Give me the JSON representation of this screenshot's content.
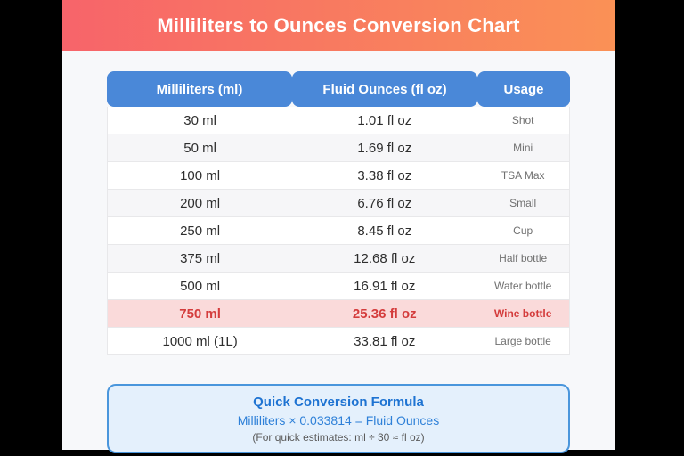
{
  "title": "Milliliters to Ounces Conversion Chart",
  "chart_data": {
    "type": "table",
    "title": "Milliliters to Ounces Conversion Chart",
    "columns": [
      "Milliliters (ml)",
      "Fluid Ounces (fl oz)",
      "Usage"
    ],
    "rows": [
      {
        "ml": "30 ml",
        "fl_oz": "1.01 fl oz",
        "usage": "Shot",
        "highlight": false
      },
      {
        "ml": "50 ml",
        "fl_oz": "1.69 fl oz",
        "usage": "Mini",
        "highlight": false
      },
      {
        "ml": "100 ml",
        "fl_oz": "3.38 fl oz",
        "usage": "TSA Max",
        "highlight": false
      },
      {
        "ml": "200 ml",
        "fl_oz": "6.76 fl oz",
        "usage": "Small",
        "highlight": false
      },
      {
        "ml": "250 ml",
        "fl_oz": "8.45 fl oz",
        "usage": "Cup",
        "highlight": false
      },
      {
        "ml": "375 ml",
        "fl_oz": "12.68 fl oz",
        "usage": "Half bottle",
        "highlight": false
      },
      {
        "ml": "500 ml",
        "fl_oz": "16.91 fl oz",
        "usage": "Water bottle",
        "highlight": false
      },
      {
        "ml": "750 ml",
        "fl_oz": "25.36 fl oz",
        "usage": "Wine bottle",
        "highlight": true
      },
      {
        "ml": "1000 ml (1L)",
        "fl_oz": "33.81 fl oz",
        "usage": "Large bottle",
        "highlight": false
      }
    ],
    "conversion_factor": 0.033814
  },
  "formula_box": {
    "title": "Quick Conversion Formula",
    "formula": "Milliliters × 0.033814 = Fluid Ounces",
    "note": "(For quick estimates: ml ÷ 30 ≈ fl oz)"
  },
  "colors": {
    "gradient_left": "#f7646a",
    "gradient_right": "#fa9156",
    "header_blue": "#4a88d8",
    "page_bg": "#f7f8fa",
    "row_alt": "#f6f6f8",
    "row_border": "#e8e8ea",
    "cell_text": "#2e2e2e",
    "usage_text": "#707070",
    "highlight_bg": "#fadada",
    "highlight_text": "#d43c3c",
    "box_bg": "#e4f0fc",
    "box_border": "#4a96dc",
    "box_title": "#1e73d2",
    "box_formula": "#2e80d8",
    "box_note": "#5a5a5a"
  }
}
